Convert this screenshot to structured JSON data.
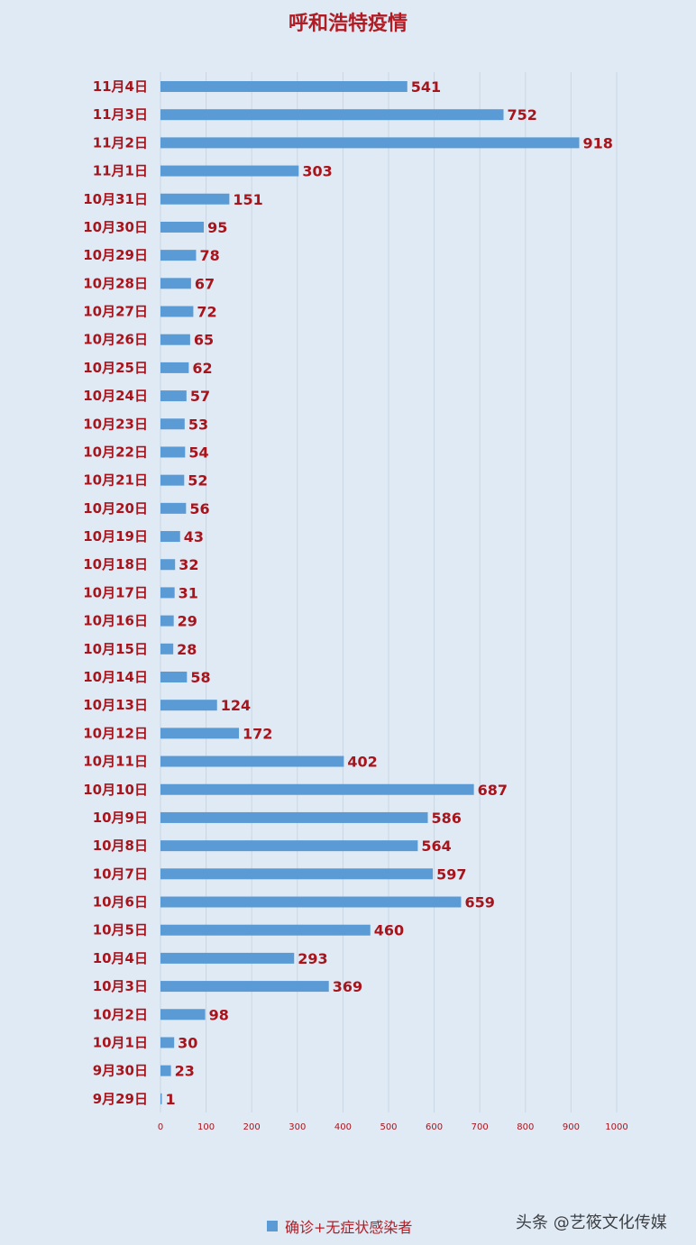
{
  "chart_data": {
    "type": "bar",
    "orientation": "horizontal",
    "title": "呼和浩特疫情",
    "categories": [
      "11月4日",
      "11月3日",
      "11月2日",
      "11月1日",
      "10月31日",
      "10月30日",
      "10月29日",
      "10月28日",
      "10月27日",
      "10月26日",
      "10月25日",
      "10月24日",
      "10月23日",
      "10月22日",
      "10月21日",
      "10月20日",
      "10月19日",
      "10月18日",
      "10月17日",
      "10月16日",
      "10月15日",
      "10月14日",
      "10月13日",
      "10月12日",
      "10月11日",
      "10月10日",
      "10月9日",
      "10月8日",
      "10月7日",
      "10月6日",
      "10月5日",
      "10月4日",
      "10月3日",
      "10月2日",
      "10月1日",
      "9月30日",
      "9月29日"
    ],
    "series": [
      {
        "name": "确诊+无症状感染者",
        "values": [
          541,
          752,
          918,
          303,
          151,
          95,
          78,
          67,
          72,
          65,
          62,
          57,
          53,
          54,
          52,
          56,
          43,
          32,
          31,
          29,
          28,
          58,
          124,
          172,
          402,
          687,
          586,
          564,
          597,
          659,
          460,
          293,
          369,
          98,
          30,
          23,
          1
        ]
      }
    ],
    "xlim": [
      0,
      1000
    ],
    "xticks": [
      "0",
      "100",
      "200",
      "300",
      "400",
      "500",
      "600",
      "700",
      "800",
      "900",
      "1000"
    ],
    "grid": true,
    "legend_position": "bottom",
    "colors": {
      "bar": "#5b9bd5",
      "text": "#a8141c",
      "background": "#dfeaf5",
      "grid": "#c9d6e3"
    }
  },
  "watermark": "头条 @艺筱文化传媒"
}
